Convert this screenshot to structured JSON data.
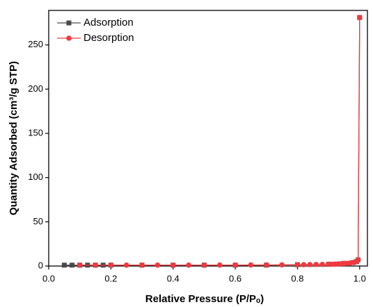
{
  "chart_data": {
    "type": "line",
    "x_label": "Relative Pressure (P/Pₒ)",
    "y_label": "Quantity Adsorbed (cm³/g STP)",
    "xlim": [
      0,
      1.025
    ],
    "ylim": [
      0,
      289
    ],
    "xticks": [
      {
        "value": 0,
        "label": "0.0"
      },
      0.2,
      0.4,
      0.6,
      0.8,
      {
        "value": 1,
        "label": "1.0"
      }
    ],
    "yticks": [
      0,
      50,
      100,
      150,
      200,
      250
    ],
    "legend": "upper left",
    "series": [
      {
        "name": "Adsorption",
        "color": "#4a4a4a",
        "marker": "square",
        "x": [
          0.05,
          0.075,
          0.1,
          0.125,
          0.15,
          0.175,
          0.2,
          0.3,
          0.4,
          0.5,
          0.6,
          0.7,
          0.8,
          0.9,
          0.95,
          0.98,
          0.99,
          0.995,
          1.0
        ],
        "values": [
          1,
          1,
          1,
          1,
          1,
          1,
          1,
          1,
          1,
          1,
          1,
          1,
          1.5,
          2,
          3,
          4,
          5,
          7,
          281
        ]
      },
      {
        "name": "Desorption",
        "color": "#f0393f",
        "marker": "circle",
        "x": [
          1.0,
          0.995,
          0.99,
          0.98,
          0.97,
          0.96,
          0.95,
          0.94,
          0.93,
          0.92,
          0.91,
          0.9,
          0.88,
          0.86,
          0.84,
          0.82,
          0.8,
          0.75,
          0.7,
          0.65,
          0.6,
          0.55,
          0.5,
          0.45,
          0.4,
          0.35,
          0.3,
          0.25,
          0.2,
          0.15,
          0.1
        ],
        "values": [
          281,
          7,
          5,
          4,
          3.5,
          3,
          2.8,
          2.6,
          2.4,
          2.2,
          2,
          2,
          1.8,
          1.7,
          1.6,
          1.5,
          1.4,
          1.3,
          1.2,
          1.2,
          1.1,
          1.1,
          1,
          1,
          1,
          1,
          1,
          1,
          1,
          1,
          1
        ]
      }
    ]
  }
}
